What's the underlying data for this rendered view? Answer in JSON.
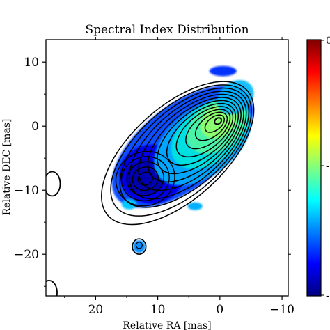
{
  "chart_data": {
    "type": "heatmap",
    "title": "Spectral Index Distribution",
    "xlabel": "Relative RA [mas]",
    "ylabel": "Relative DEC [mas]",
    "xlim": [
      28,
      -11
    ],
    "ylim": [
      -26.5,
      13.5
    ],
    "x_ticks": [
      20,
      10,
      0,
      -10
    ],
    "x_tick_labels": [
      "20",
      "10",
      "0",
      "−10"
    ],
    "y_ticks": [
      10,
      0,
      -10,
      -20
    ],
    "y_tick_labels": [
      "10",
      "0",
      "−10",
      "−20"
    ],
    "grid": false,
    "colormap": "jet",
    "colorbar": {
      "tick_labels": [
        "0",
        "-",
        "-"
      ],
      "colors": [
        "#00007f",
        "#0000ff",
        "#007fff",
        "#00ffff",
        "#7fff7f",
        "#ffff00",
        "#ff7f00",
        "#ff0000",
        "#7f0000"
      ]
    },
    "heatmap_regions": [
      {
        "name": "core",
        "center": [
          0,
          0.5
        ],
        "spectral_color": "#7fff7f"
      },
      {
        "name": "jet-middle",
        "center": [
          4,
          -4
        ],
        "spectral_color": "#00ffff"
      },
      {
        "name": "knot",
        "center": [
          12,
          -8
        ],
        "spectral_color": "#0000ff"
      },
      {
        "name": "small-knot",
        "center": [
          13,
          -18.8
        ],
        "spectral_color": "#007fff"
      }
    ],
    "contour_levels": 13,
    "contour_center": [
      0.3,
      0.8
    ],
    "contours_extra": [
      {
        "name": "left-blob",
        "center": [
          27,
          -9
        ]
      },
      {
        "name": "bottom-left-blob",
        "center": [
          27.5,
          -26
        ]
      }
    ]
  }
}
